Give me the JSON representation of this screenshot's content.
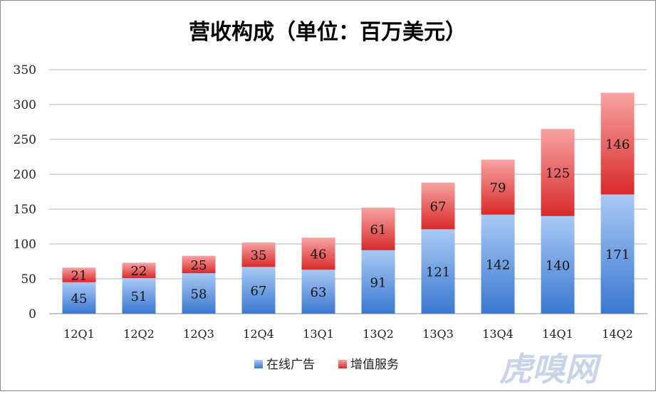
{
  "chart_data": {
    "type": "bar",
    "stacked": true,
    "title": "营收构成（单位：百万美元）",
    "categories": [
      "12Q1",
      "12Q2",
      "12Q3",
      "12Q4",
      "13Q1",
      "13Q2",
      "13Q3",
      "13Q4",
      "14Q1",
      "14Q2"
    ],
    "series": [
      {
        "name": "在线广告",
        "color": "#4a86d9",
        "values": [
          45,
          51,
          58,
          67,
          63,
          91,
          121,
          142,
          140,
          171
        ]
      },
      {
        "name": "增值服务",
        "color": "#e03a3a",
        "values": [
          21,
          22,
          25,
          35,
          46,
          61,
          67,
          79,
          125,
          146
        ]
      }
    ],
    "ylim": [
      0,
      350
    ],
    "yticks": [
      0,
      50,
      100,
      150,
      200,
      250,
      300,
      350
    ],
    "grid": true,
    "legend_position": "bottom-center"
  },
  "watermark": "虎嗅网"
}
